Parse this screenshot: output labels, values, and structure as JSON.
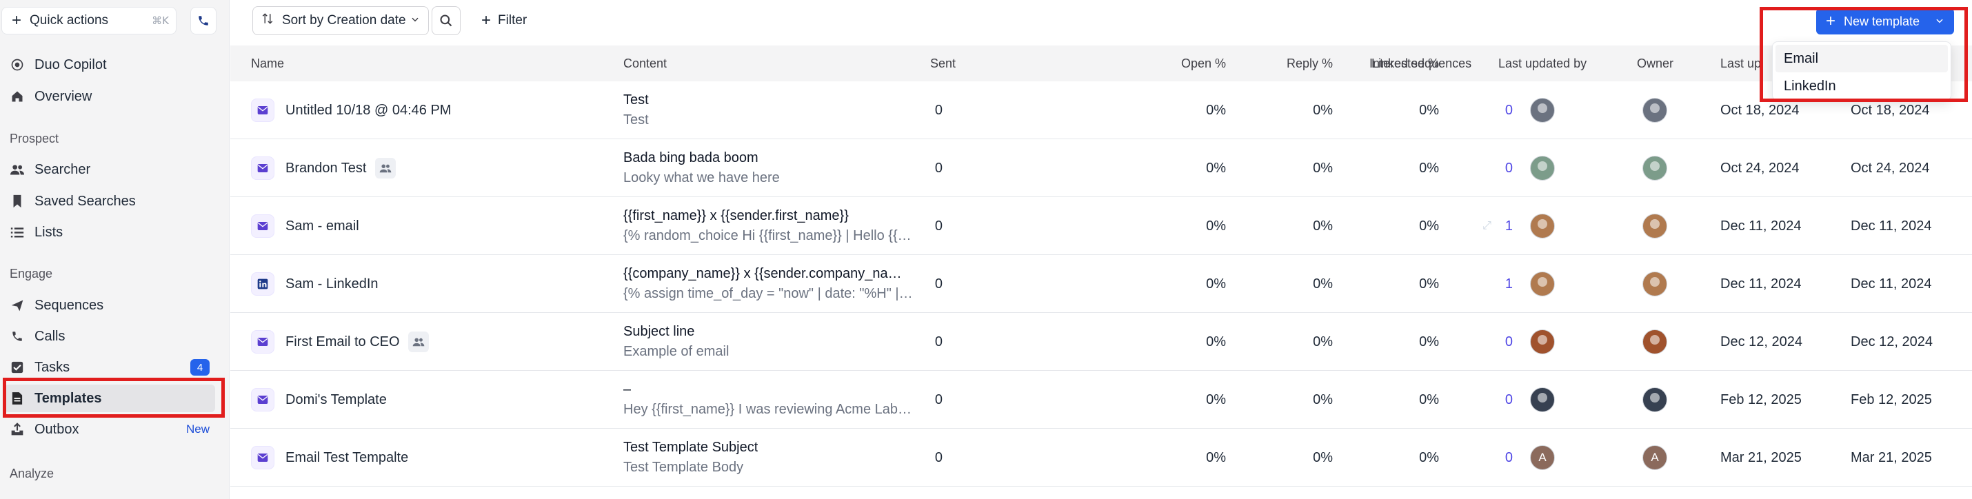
{
  "sidebar": {
    "quick_actions": {
      "label": "Quick actions",
      "shortcut": "⌘K"
    },
    "top_items": [
      {
        "label": "Duo Copilot",
        "icon": "copilot-icon"
      },
      {
        "label": "Overview",
        "icon": "home-icon"
      }
    ],
    "sections": [
      {
        "heading": "Prospect",
        "items": [
          {
            "label": "Searcher",
            "icon": "people-icon"
          },
          {
            "label": "Saved Searches",
            "icon": "bookmark-icon"
          },
          {
            "label": "Lists",
            "icon": "list-icon"
          }
        ]
      },
      {
        "heading": "Engage",
        "items": [
          {
            "label": "Sequences",
            "icon": "send-icon"
          },
          {
            "label": "Calls",
            "icon": "phone-icon"
          },
          {
            "label": "Tasks",
            "icon": "checkbox-icon",
            "badge": "4"
          },
          {
            "label": "Templates",
            "icon": "document-icon",
            "active": true
          },
          {
            "label": "Outbox",
            "icon": "outbox-icon",
            "tag": "New"
          }
        ]
      },
      {
        "heading": "Analyze",
        "items": []
      }
    ]
  },
  "toolbar": {
    "sort_label": "Sort by Creation date",
    "filter_label": "Filter",
    "new_template_label": "New template"
  },
  "new_template_menu": {
    "options": [
      "Email",
      "LinkedIn"
    ],
    "highlighted": "Email"
  },
  "table": {
    "columns": {
      "name": "Name",
      "content": "Content",
      "sent": "Sent",
      "open": "Open %",
      "reply": "Reply %",
      "interested": "Interested %",
      "linked": "Linked sequences",
      "updated_by": "Last updated by",
      "owner": "Owner",
      "last_up": "Last up"
    },
    "rows": [
      {
        "type": "email",
        "name": "Untitled 10/18 @ 04:46 PM",
        "shared": false,
        "subject": "Test",
        "body": "Test",
        "sent": "0",
        "open": "0%",
        "reply": "0%",
        "interested": "0%",
        "linked": "0",
        "avatar": "#6b7280",
        "last_updated": "Oct 18, 2024",
        "created": "Oct 18, 2024"
      },
      {
        "type": "email",
        "name": "Brandon Test",
        "shared": true,
        "subject": "Bada bing bada boom",
        "body": "Looky what we have here",
        "sent": "0",
        "open": "0%",
        "reply": "0%",
        "interested": "0%",
        "linked": "0",
        "avatar": "#7c9c8a",
        "last_updated": "Oct 24, 2024",
        "created": "Oct 24, 2024"
      },
      {
        "type": "email",
        "name": "Sam - email",
        "shared": false,
        "subject": "{{first_name}} x {{sender.first_name}}",
        "body": "{% random_choice Hi {{first_name}} | Hello {{fi…",
        "sent": "0",
        "open": "0%",
        "reply": "0%",
        "interested": "0%",
        "linked": "1",
        "expand": true,
        "avatar": "#b07a4f",
        "last_updated": "Dec 11, 2024",
        "created": "Dec 11, 2024"
      },
      {
        "type": "linkedin",
        "name": "Sam - LinkedIn",
        "shared": false,
        "subject": "{{company_name}} x {{sender.company_nam…",
        "body": "{% assign time_of_day = \"now\" | date: \"%H\" | …",
        "sent": "0",
        "open": "0%",
        "reply": "0%",
        "interested": "0%",
        "linked": "1",
        "avatar": "#b07a4f",
        "last_updated": "Dec 11, 2024",
        "created": "Dec 11, 2024"
      },
      {
        "type": "email",
        "name": "First Email to CEO",
        "shared": true,
        "subject": "Subject line",
        "body": "Example of email",
        "sent": "0",
        "open": "0%",
        "reply": "0%",
        "interested": "0%",
        "linked": "0",
        "avatar": "#a0522d",
        "last_updated": "Dec 12, 2024",
        "created": "Dec 12, 2024"
      },
      {
        "type": "email",
        "name": "Domi's Template",
        "shared": false,
        "subject": "–",
        "body": "Hey {{first_name}} I was reviewing Acme Labs'…",
        "sent": "0",
        "open": "0%",
        "reply": "0%",
        "interested": "0%",
        "linked": "0",
        "avatar": "#374151",
        "last_updated": "Feb 12, 2025",
        "created": "Feb 12, 2025"
      },
      {
        "type": "email",
        "name": "Email Test Tempalte",
        "shared": false,
        "subject": "Test Template Subject",
        "body": "Test Template Body",
        "sent": "0",
        "open": "0%",
        "reply": "0%",
        "interested": "0%",
        "linked": "0",
        "avatar": "#8b6a5c",
        "avatar_letter": "A",
        "last_updated": "Mar 21, 2025",
        "created": "Mar 21, 2025"
      }
    ]
  },
  "colors": {
    "accent": "#2563eb",
    "highlight": "#e11d1d",
    "linked": "#4f46e5",
    "email_icon": "#5b3fd1",
    "linkedin_icon": "#1e3a8a"
  }
}
